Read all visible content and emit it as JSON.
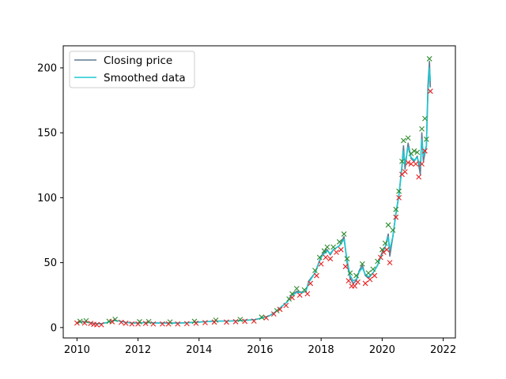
{
  "chart_data": {
    "type": "line",
    "title": "",
    "xlabel": "",
    "ylabel": "",
    "xlim": [
      2009.55,
      2022.4
    ],
    "ylim": [
      -8,
      217
    ],
    "x_ticks": [
      2010,
      2012,
      2014,
      2016,
      2018,
      2020,
      2022
    ],
    "x_tick_labels": [
      "2010",
      "2012",
      "2014",
      "2016",
      "2018",
      "2020",
      "2022"
    ],
    "y_ticks": [
      0,
      50,
      100,
      150,
      200
    ],
    "y_tick_labels": [
      "0",
      "50",
      "100",
      "150",
      "200"
    ],
    "grid": false,
    "legend": {
      "placement": "top-left",
      "entries": [
        {
          "label": "Closing price",
          "color": "#5f7a92"
        },
        {
          "label": "Smoothed data",
          "color": "#1ec8d2"
        }
      ]
    },
    "series": [
      {
        "name": "Closing price",
        "color": "#5f7a92",
        "points": [
          [
            2010.0,
            4
          ],
          [
            2010.2,
            4.5
          ],
          [
            2010.4,
            4
          ],
          [
            2010.6,
            3
          ],
          [
            2010.8,
            3
          ],
          [
            2011.0,
            4
          ],
          [
            2011.2,
            5.5
          ],
          [
            2011.4,
            5
          ],
          [
            2011.6,
            4
          ],
          [
            2011.8,
            3.5
          ],
          [
            2012.0,
            3.5
          ],
          [
            2012.3,
            4
          ],
          [
            2012.6,
            3.5
          ],
          [
            2013.0,
            3.5
          ],
          [
            2013.4,
            3.5
          ],
          [
            2013.8,
            4
          ],
          [
            2014.2,
            4.5
          ],
          [
            2014.6,
            5
          ],
          [
            2015.0,
            5
          ],
          [
            2015.4,
            5.5
          ],
          [
            2015.8,
            6
          ],
          [
            2016.0,
            7
          ],
          [
            2016.3,
            9
          ],
          [
            2016.5,
            12
          ],
          [
            2016.7,
            16
          ],
          [
            2016.9,
            20
          ],
          [
            2017.0,
            24
          ],
          [
            2017.2,
            28
          ],
          [
            2017.4,
            27
          ],
          [
            2017.5,
            28
          ],
          [
            2017.6,
            36
          ],
          [
            2017.8,
            42
          ],
          [
            2018.0,
            55
          ],
          [
            2018.1,
            58
          ],
          [
            2018.2,
            60
          ],
          [
            2018.3,
            56
          ],
          [
            2018.4,
            60
          ],
          [
            2018.6,
            63
          ],
          [
            2018.75,
            70
          ],
          [
            2018.85,
            50
          ],
          [
            2018.95,
            38
          ],
          [
            2019.05,
            34
          ],
          [
            2019.15,
            36
          ],
          [
            2019.25,
            44
          ],
          [
            2019.35,
            48
          ],
          [
            2019.45,
            40
          ],
          [
            2019.55,
            38
          ],
          [
            2019.7,
            42
          ],
          [
            2019.85,
            48
          ],
          [
            2020.0,
            58
          ],
          [
            2020.1,
            62
          ],
          [
            2020.2,
            72
          ],
          [
            2020.25,
            55
          ],
          [
            2020.35,
            70
          ],
          [
            2020.45,
            88
          ],
          [
            2020.55,
            102
          ],
          [
            2020.65,
            125
          ],
          [
            2020.7,
            140
          ],
          [
            2020.75,
            122
          ],
          [
            2020.85,
            142
          ],
          [
            2020.95,
            130
          ],
          [
            2021.05,
            128
          ],
          [
            2021.15,
            132
          ],
          [
            2021.25,
            118
          ],
          [
            2021.3,
            150
          ],
          [
            2021.35,
            128
          ],
          [
            2021.45,
            140
          ],
          [
            2021.5,
            186
          ],
          [
            2021.55,
            205
          ],
          [
            2021.58,
            185
          ]
        ]
      },
      {
        "name": "Smoothed data",
        "color": "#1ec8d2",
        "points": [
          [
            2010.0,
            4
          ],
          [
            2010.2,
            4.5
          ],
          [
            2010.4,
            4
          ],
          [
            2010.6,
            3
          ],
          [
            2010.8,
            3
          ],
          [
            2011.0,
            4
          ],
          [
            2011.2,
            5.5
          ],
          [
            2011.4,
            5
          ],
          [
            2011.6,
            4
          ],
          [
            2011.8,
            3.5
          ],
          [
            2012.0,
            3.5
          ],
          [
            2012.3,
            4
          ],
          [
            2012.6,
            3.5
          ],
          [
            2013.0,
            3.5
          ],
          [
            2013.4,
            3.5
          ],
          [
            2013.8,
            4
          ],
          [
            2014.2,
            4.5
          ],
          [
            2014.6,
            5
          ],
          [
            2015.0,
            5
          ],
          [
            2015.4,
            5.5
          ],
          [
            2015.8,
            6
          ],
          [
            2016.0,
            7
          ],
          [
            2016.3,
            9
          ],
          [
            2016.5,
            12
          ],
          [
            2016.7,
            16
          ],
          [
            2016.9,
            20
          ],
          [
            2017.0,
            24
          ],
          [
            2017.2,
            27
          ],
          [
            2017.4,
            27
          ],
          [
            2017.5,
            28
          ],
          [
            2017.6,
            35
          ],
          [
            2017.8,
            42
          ],
          [
            2018.0,
            54
          ],
          [
            2018.1,
            57
          ],
          [
            2018.2,
            59
          ],
          [
            2018.3,
            57
          ],
          [
            2018.4,
            60
          ],
          [
            2018.6,
            63
          ],
          [
            2018.75,
            68
          ],
          [
            2018.85,
            52
          ],
          [
            2018.95,
            40
          ],
          [
            2019.05,
            36
          ],
          [
            2019.15,
            37
          ],
          [
            2019.25,
            43
          ],
          [
            2019.35,
            46
          ],
          [
            2019.45,
            41
          ],
          [
            2019.55,
            39
          ],
          [
            2019.7,
            42
          ],
          [
            2019.85,
            48
          ],
          [
            2020.0,
            57
          ],
          [
            2020.1,
            62
          ],
          [
            2020.2,
            70
          ],
          [
            2020.25,
            60
          ],
          [
            2020.35,
            70
          ],
          [
            2020.45,
            87
          ],
          [
            2020.55,
            102
          ],
          [
            2020.65,
            123
          ],
          [
            2020.7,
            136
          ],
          [
            2020.75,
            126
          ],
          [
            2020.85,
            139
          ],
          [
            2020.95,
            131
          ],
          [
            2021.05,
            129
          ],
          [
            2021.15,
            131
          ],
          [
            2021.25,
            124
          ],
          [
            2021.3,
            145
          ],
          [
            2021.35,
            132
          ],
          [
            2021.45,
            140
          ],
          [
            2021.5,
            180
          ],
          [
            2021.55,
            200
          ],
          [
            2021.58,
            190
          ]
        ]
      },
      {
        "name": "",
        "marker": "x",
        "color": "#2e8b2e",
        "points": [
          [
            2010.1,
            4.8
          ],
          [
            2010.3,
            5.2
          ],
          [
            2011.05,
            4.8
          ],
          [
            2011.25,
            6.3
          ],
          [
            2012.05,
            4.5
          ],
          [
            2012.35,
            4.6
          ],
          [
            2013.05,
            4.3
          ],
          [
            2013.85,
            4.8
          ],
          [
            2014.55,
            5.7
          ],
          [
            2015.35,
            6.2
          ],
          [
            2016.05,
            8
          ],
          [
            2016.55,
            13
          ],
          [
            2016.95,
            22
          ],
          [
            2017.05,
            26
          ],
          [
            2017.2,
            30
          ],
          [
            2017.45,
            29
          ],
          [
            2017.8,
            44
          ],
          [
            2017.95,
            54
          ],
          [
            2018.1,
            59
          ],
          [
            2018.2,
            62
          ],
          [
            2018.4,
            62
          ],
          [
            2018.6,
            66
          ],
          [
            2018.75,
            72
          ],
          [
            2018.85,
            53
          ],
          [
            2018.95,
            42
          ],
          [
            2019.15,
            40
          ],
          [
            2019.35,
            49
          ],
          [
            2019.55,
            42
          ],
          [
            2019.7,
            45
          ],
          [
            2019.85,
            51
          ],
          [
            2020.0,
            60
          ],
          [
            2020.1,
            65
          ],
          [
            2020.2,
            79
          ],
          [
            2020.35,
            75
          ],
          [
            2020.45,
            91
          ],
          [
            2020.55,
            105
          ],
          [
            2020.65,
            128
          ],
          [
            2020.7,
            144
          ],
          [
            2020.85,
            146
          ],
          [
            2020.95,
            134
          ],
          [
            2021.05,
            136
          ],
          [
            2021.15,
            135
          ],
          [
            2021.3,
            153
          ],
          [
            2021.4,
            161
          ],
          [
            2021.45,
            145
          ],
          [
            2021.55,
            207
          ]
        ]
      },
      {
        "name": "",
        "marker": "x",
        "color": "#e82020",
        "points": [
          [
            2010.0,
            3.5
          ],
          [
            2010.25,
            3.5
          ],
          [
            2010.45,
            3.2
          ],
          [
            2010.55,
            2.5
          ],
          [
            2010.65,
            2.2
          ],
          [
            2010.8,
            2.2
          ],
          [
            2011.15,
            4.5
          ],
          [
            2011.45,
            4
          ],
          [
            2011.6,
            3.3
          ],
          [
            2011.8,
            2.8
          ],
          [
            2012.0,
            2.8
          ],
          [
            2012.25,
            3.2
          ],
          [
            2012.5,
            2.8
          ],
          [
            2012.8,
            2.8
          ],
          [
            2013.0,
            2.8
          ],
          [
            2013.3,
            2.8
          ],
          [
            2013.6,
            3
          ],
          [
            2013.9,
            3.3
          ],
          [
            2014.2,
            3.8
          ],
          [
            2014.5,
            4.2
          ],
          [
            2014.9,
            4.2
          ],
          [
            2015.2,
            4.5
          ],
          [
            2015.5,
            4.8
          ],
          [
            2015.8,
            5
          ],
          [
            2016.2,
            7.5
          ],
          [
            2016.45,
            10.5
          ],
          [
            2016.65,
            14
          ],
          [
            2016.85,
            17
          ],
          [
            2017.05,
            23
          ],
          [
            2017.3,
            25
          ],
          [
            2017.55,
            26
          ],
          [
            2017.65,
            34
          ],
          [
            2017.85,
            40
          ],
          [
            2018.0,
            49
          ],
          [
            2018.15,
            54
          ],
          [
            2018.3,
            53
          ],
          [
            2018.5,
            58
          ],
          [
            2018.65,
            60
          ],
          [
            2018.8,
            47
          ],
          [
            2018.9,
            36
          ],
          [
            2019.0,
            32
          ],
          [
            2019.1,
            32
          ],
          [
            2019.2,
            35
          ],
          [
            2019.45,
            34
          ],
          [
            2019.6,
            37
          ],
          [
            2019.75,
            40
          ],
          [
            2019.95,
            54
          ],
          [
            2020.05,
            58
          ],
          [
            2020.15,
            60
          ],
          [
            2020.25,
            50
          ],
          [
            2020.45,
            85
          ],
          [
            2020.55,
            100
          ],
          [
            2020.65,
            118
          ],
          [
            2020.75,
            120
          ],
          [
            2020.85,
            127
          ],
          [
            2020.95,
            126
          ],
          [
            2021.1,
            126
          ],
          [
            2021.2,
            116
          ],
          [
            2021.3,
            126
          ],
          [
            2021.4,
            136
          ],
          [
            2021.58,
            182
          ]
        ]
      }
    ]
  }
}
